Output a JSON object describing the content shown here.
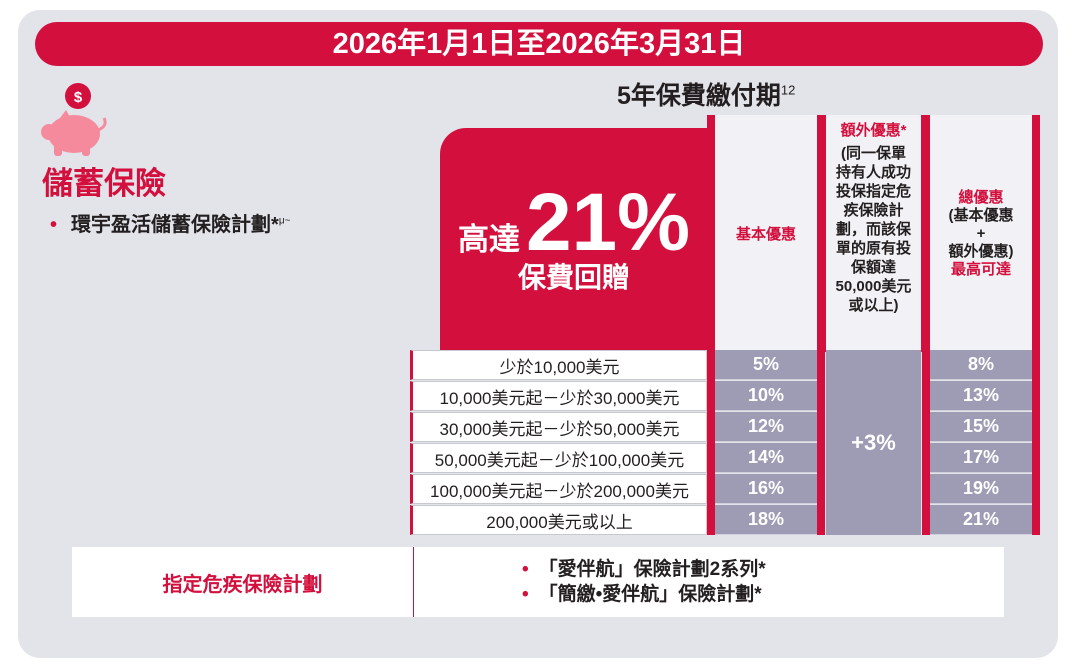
{
  "banner": {
    "date_range": "2026年1月1日至2026年3月31日"
  },
  "period": {
    "title": "5年保費繳付期",
    "footnote": "12"
  },
  "category": {
    "title": "儲蓄保險",
    "icon": "piggy-bank-dollar-icon"
  },
  "plan": {
    "name": "環宇盈活儲蓄保險計劃*",
    "footnote": "μ~"
  },
  "promo": {
    "prefix": "高達",
    "percent": "21%",
    "suffix": "保費回贈"
  },
  "columns": {
    "base": "基本優惠",
    "extra_title": "額外優惠*",
    "extra_condition": "(同一保單持有人成功投保指定危疾保險計劃，而該保單的原有投保額達50,000美元或以上)",
    "total_line1": "總優惠",
    "total_line2": "(基本優惠",
    "total_plus": "+",
    "total_line3": "額外優惠)",
    "total_line4": "最高可達"
  },
  "rows": [
    {
      "range": "少於10,000美元",
      "base": "5%",
      "total": "8%"
    },
    {
      "range": "10,000美元起－少於30,000美元",
      "base": "10%",
      "total": "13%"
    },
    {
      "range": "30,000美元起－少於50,000美元",
      "base": "12%",
      "total": "15%"
    },
    {
      "range": "50,000美元起－少於100,000美元",
      "base": "14%",
      "total": "17%"
    },
    {
      "range": "100,000美元起－少於200,000美元",
      "base": "16%",
      "total": "19%"
    },
    {
      "range": "200,000美元或以上",
      "base": "18%",
      "total": "21%"
    }
  ],
  "extra_value": "+3%",
  "critical_illness": {
    "label": "指定危疾保險計劃",
    "plans": [
      "「愛伴航」保險計劃2系列*",
      "「簡繳•愛伴航」保險計劃*"
    ]
  },
  "colors": {
    "brand_red": "#d3103d",
    "cell_grey": "#9d9cb4",
    "panel_bg": "#e3e3ea"
  }
}
